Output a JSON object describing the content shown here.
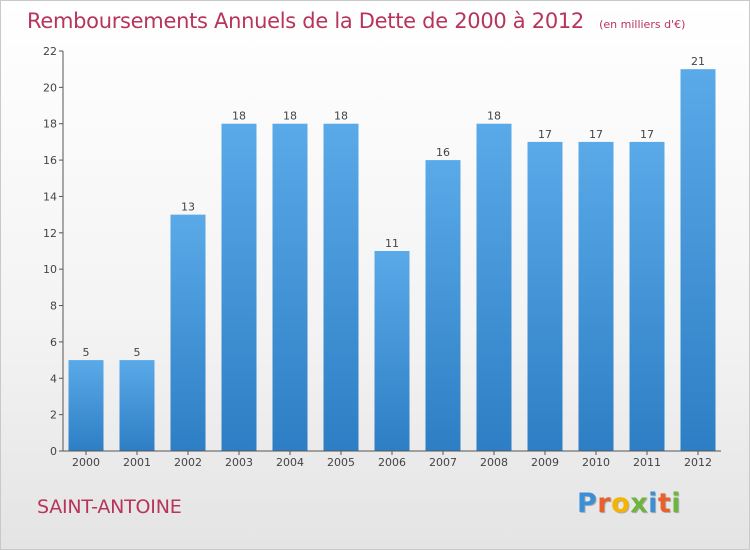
{
  "header": {
    "title": "Remboursements Annuels de la Dette de 2000 à 2012",
    "unit": "(en milliers d'€)"
  },
  "footer": {
    "place": "SAINT-ANTOINE",
    "logo_text": "Proxiti",
    "logo_colors": [
      "#3a8fd6",
      "#e8612c",
      "#f5b400",
      "#6fb43f",
      "#3a8fd6",
      "#e8612c",
      "#6fb43f"
    ]
  },
  "colors": {
    "bar_light": "#5aaae9",
    "bar_dark": "#2d7ec4",
    "accent_text": "#b7345a",
    "axis": "#555555"
  },
  "chart_data": {
    "type": "bar",
    "categories": [
      "2000",
      "2001",
      "2002",
      "2003",
      "2004",
      "2005",
      "2006",
      "2007",
      "2008",
      "2009",
      "2010",
      "2011",
      "2012"
    ],
    "values": [
      5,
      5,
      13,
      18,
      18,
      18,
      11,
      16,
      18,
      17,
      17,
      17,
      21
    ],
    "data_labels": [
      "5",
      "5",
      "13",
      "18",
      "18",
      "18",
      "11",
      "16",
      "18",
      "17",
      "17",
      "17",
      "21"
    ],
    "yticks": [
      0,
      2,
      4,
      6,
      8,
      10,
      12,
      14,
      16,
      18,
      20,
      22
    ],
    "ylim": [
      0,
      22
    ],
    "title": "Remboursements Annuels de la Dette de 2000 à 2012",
    "xlabel": "",
    "ylabel": "",
    "grid": false,
    "legend": "none"
  }
}
